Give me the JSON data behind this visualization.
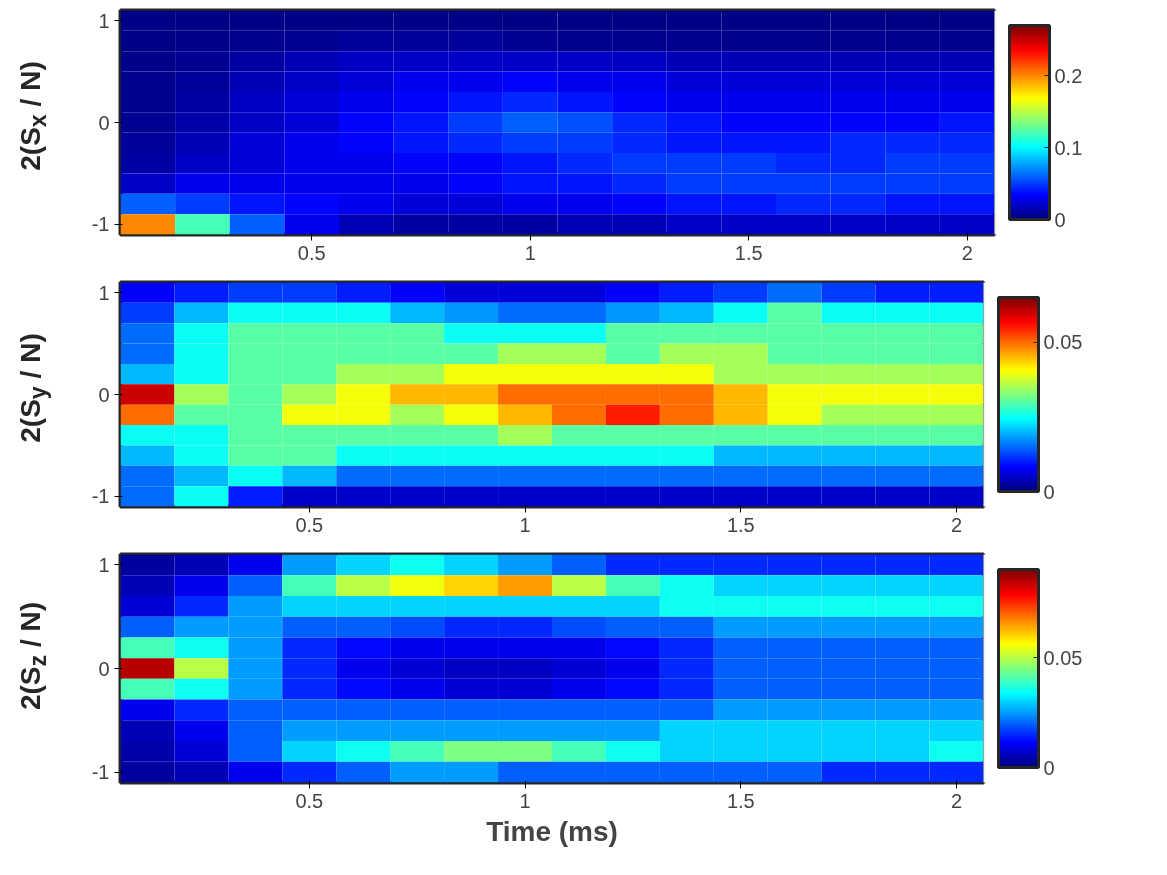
{
  "chart_data": [
    {
      "type": "heatmap",
      "ylabel": "2(S$_{x}$ / N)",
      "categories": [
        null,
        null,
        null,
        "0.5",
        null,
        null,
        null,
        "1",
        null,
        null,
        null,
        "1.5",
        null,
        null,
        null,
        "2"
      ],
      "y_categories": [
        "1",
        null,
        null,
        null,
        null,
        "0",
        null,
        null,
        null,
        null,
        "-1"
      ],
      "clim": [
        0,
        0.27
      ],
      "cticks": [
        0,
        0.1,
        0.2
      ],
      "cells": [
        [
          0.003,
          0.003,
          0.003,
          0.003,
          0.003,
          0.003,
          0.003,
          0.003,
          0.003,
          0.003,
          0.003,
          0.003,
          0.003,
          0.003,
          0.003,
          0.003
        ],
        [
          0.003,
          0.004,
          0.005,
          0.006,
          0.008,
          0.008,
          0.008,
          0.006,
          0.005,
          0.005,
          0.005,
          0.005,
          0.005,
          0.005,
          0.005,
          0.005
        ],
        [
          0.004,
          0.006,
          0.01,
          0.015,
          0.018,
          0.02,
          0.02,
          0.02,
          0.02,
          0.018,
          0.015,
          0.015,
          0.015,
          0.015,
          0.015,
          0.015
        ],
        [
          0.005,
          0.008,
          0.015,
          0.02,
          0.025,
          0.03,
          0.03,
          0.035,
          0.03,
          0.03,
          0.025,
          0.025,
          0.025,
          0.025,
          0.025,
          0.025
        ],
        [
          0.005,
          0.01,
          0.018,
          0.025,
          0.03,
          0.035,
          0.04,
          0.045,
          0.04,
          0.035,
          0.03,
          0.03,
          0.03,
          0.03,
          0.03,
          0.03
        ],
        [
          0.006,
          0.012,
          0.02,
          0.025,
          0.035,
          0.04,
          0.05,
          0.06,
          0.055,
          0.045,
          0.04,
          0.035,
          0.035,
          0.035,
          0.035,
          0.04
        ],
        [
          0.008,
          0.015,
          0.025,
          0.03,
          0.035,
          0.04,
          0.045,
          0.05,
          0.05,
          0.045,
          0.04,
          0.04,
          0.04,
          0.045,
          0.045,
          0.045
        ],
        [
          0.01,
          0.02,
          0.025,
          0.03,
          0.03,
          0.035,
          0.035,
          0.04,
          0.045,
          0.05,
          0.05,
          0.05,
          0.045,
          0.045,
          0.05,
          0.05
        ],
        [
          0.02,
          0.03,
          0.03,
          0.03,
          0.03,
          0.03,
          0.035,
          0.04,
          0.04,
          0.045,
          0.05,
          0.05,
          0.05,
          0.05,
          0.05,
          0.05
        ],
        [
          0.06,
          0.05,
          0.04,
          0.035,
          0.03,
          0.025,
          0.025,
          0.03,
          0.03,
          0.035,
          0.04,
          0.04,
          0.045,
          0.045,
          0.04,
          0.04
        ],
        [
          0.2,
          0.12,
          0.06,
          0.03,
          0.015,
          0.01,
          0.01,
          0.01,
          0.015,
          0.015,
          0.02,
          0.02,
          0.02,
          0.02,
          0.02,
          0.02
        ]
      ]
    },
    {
      "type": "heatmap",
      "ylabel": "2(S$_{y}$ / N)",
      "categories": [
        null,
        null,
        null,
        "0.5",
        null,
        null,
        null,
        "1",
        null,
        null,
        null,
        "1.5",
        null,
        null,
        null,
        "2"
      ],
      "y_categories": [
        "1",
        null,
        null,
        null,
        null,
        "0",
        null,
        null,
        null,
        null,
        "-1"
      ],
      "clim": [
        0,
        0.065
      ],
      "cticks": [
        0,
        0.05
      ],
      "cells": [
        [
          0.008,
          0.01,
          0.012,
          0.012,
          0.01,
          0.008,
          0.006,
          0.006,
          0.006,
          0.008,
          0.01,
          0.012,
          0.015,
          0.012,
          0.01,
          0.01
        ],
        [
          0.012,
          0.02,
          0.025,
          0.025,
          0.025,
          0.02,
          0.018,
          0.015,
          0.015,
          0.018,
          0.02,
          0.025,
          0.03,
          0.025,
          0.025,
          0.025
        ],
        [
          0.015,
          0.025,
          0.03,
          0.03,
          0.03,
          0.03,
          0.025,
          0.025,
          0.025,
          0.03,
          0.03,
          0.03,
          0.03,
          0.03,
          0.03,
          0.03
        ],
        [
          0.015,
          0.025,
          0.03,
          0.03,
          0.03,
          0.03,
          0.03,
          0.035,
          0.035,
          0.03,
          0.035,
          0.035,
          0.03,
          0.03,
          0.03,
          0.03
        ],
        [
          0.02,
          0.025,
          0.03,
          0.03,
          0.035,
          0.035,
          0.04,
          0.04,
          0.04,
          0.04,
          0.04,
          0.035,
          0.035,
          0.035,
          0.035,
          0.035
        ],
        [
          0.06,
          0.035,
          0.03,
          0.035,
          0.04,
          0.045,
          0.045,
          0.05,
          0.05,
          0.05,
          0.05,
          0.045,
          0.04,
          0.04,
          0.04,
          0.04
        ],
        [
          0.05,
          0.03,
          0.03,
          0.04,
          0.04,
          0.035,
          0.04,
          0.045,
          0.05,
          0.055,
          0.05,
          0.045,
          0.04,
          0.035,
          0.035,
          0.035
        ],
        [
          0.025,
          0.025,
          0.03,
          0.03,
          0.03,
          0.03,
          0.03,
          0.035,
          0.03,
          0.03,
          0.03,
          0.03,
          0.03,
          0.03,
          0.03,
          0.03
        ],
        [
          0.02,
          0.025,
          0.03,
          0.03,
          0.025,
          0.025,
          0.025,
          0.025,
          0.025,
          0.025,
          0.025,
          0.02,
          0.02,
          0.02,
          0.02,
          0.02
        ],
        [
          0.015,
          0.02,
          0.025,
          0.02,
          0.015,
          0.015,
          0.015,
          0.015,
          0.015,
          0.015,
          0.015,
          0.015,
          0.015,
          0.015,
          0.015,
          0.015
        ],
        [
          0.015,
          0.025,
          0.01,
          0.005,
          0.005,
          0.005,
          0.005,
          0.005,
          0.005,
          0.005,
          0.005,
          0.005,
          0.005,
          0.005,
          0.005,
          0.005
        ]
      ]
    },
    {
      "type": "heatmap",
      "ylabel": "2(S$_{z}$ / N)",
      "xlabel": "Time (ms)",
      "categories": [
        null,
        null,
        null,
        "0.5",
        null,
        null,
        null,
        "1",
        null,
        null,
        null,
        "1.5",
        null,
        null,
        null,
        "2"
      ],
      "y_categories": [
        "1",
        null,
        null,
        null,
        null,
        "0",
        null,
        null,
        null,
        null,
        "-1"
      ],
      "clim": [
        0,
        0.09
      ],
      "cticks": [
        0,
        0.05
      ],
      "cells": [
        [
          0.003,
          0.005,
          0.01,
          0.025,
          0.03,
          0.035,
          0.03,
          0.025,
          0.02,
          0.015,
          0.015,
          0.015,
          0.015,
          0.015,
          0.015,
          0.015
        ],
        [
          0.005,
          0.01,
          0.02,
          0.04,
          0.05,
          0.055,
          0.06,
          0.065,
          0.05,
          0.04,
          0.035,
          0.03,
          0.03,
          0.03,
          0.03,
          0.03
        ],
        [
          0.008,
          0.015,
          0.025,
          0.03,
          0.03,
          0.03,
          0.03,
          0.03,
          0.03,
          0.03,
          0.035,
          0.035,
          0.035,
          0.035,
          0.035,
          0.035
        ],
        [
          0.02,
          0.025,
          0.025,
          0.02,
          0.02,
          0.018,
          0.015,
          0.015,
          0.018,
          0.02,
          0.02,
          0.025,
          0.025,
          0.025,
          0.025,
          0.025
        ],
        [
          0.04,
          0.035,
          0.025,
          0.015,
          0.012,
          0.01,
          0.01,
          0.01,
          0.01,
          0.012,
          0.015,
          0.02,
          0.02,
          0.02,
          0.02,
          0.02
        ],
        [
          0.085,
          0.05,
          0.025,
          0.015,
          0.01,
          0.008,
          0.006,
          0.006,
          0.008,
          0.01,
          0.015,
          0.02,
          0.02,
          0.02,
          0.02,
          0.02
        ],
        [
          0.04,
          0.035,
          0.025,
          0.015,
          0.012,
          0.01,
          0.008,
          0.008,
          0.01,
          0.012,
          0.015,
          0.02,
          0.02,
          0.02,
          0.02,
          0.02
        ],
        [
          0.01,
          0.015,
          0.02,
          0.02,
          0.02,
          0.02,
          0.02,
          0.02,
          0.02,
          0.02,
          0.02,
          0.025,
          0.025,
          0.025,
          0.025,
          0.025
        ],
        [
          0.005,
          0.01,
          0.02,
          0.025,
          0.025,
          0.025,
          0.025,
          0.025,
          0.025,
          0.025,
          0.03,
          0.03,
          0.03,
          0.03,
          0.03,
          0.03
        ],
        [
          0.004,
          0.008,
          0.02,
          0.03,
          0.035,
          0.04,
          0.045,
          0.045,
          0.04,
          0.035,
          0.03,
          0.03,
          0.03,
          0.03,
          0.03,
          0.035
        ],
        [
          0.003,
          0.005,
          0.01,
          0.015,
          0.02,
          0.025,
          0.025,
          0.02,
          0.02,
          0.02,
          0.02,
          0.02,
          0.02,
          0.015,
          0.015,
          0.015
        ]
      ]
    }
  ]
}
